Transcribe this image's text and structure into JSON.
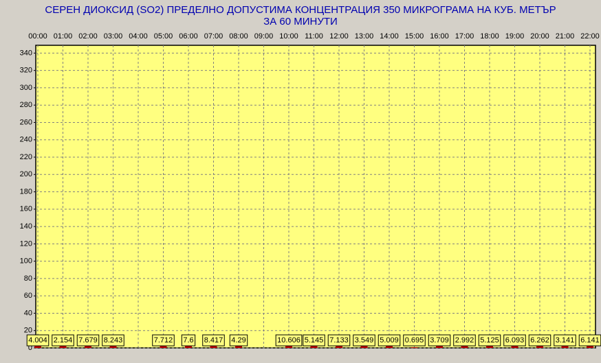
{
  "chart_data": {
    "type": "bar",
    "title": "СЕРЕН ДИОКСИД  (SO2)  ПРЕДЕЛНО ДОПУСТИМА КОНЦЕНТРАЦИЯ 350 МИКРОГРАМА  НА КУБ. МЕТЪР",
    "subtitle": "ЗА 60 МИНУТИ",
    "categories": [
      "00:00",
      "01:00",
      "02:00",
      "03:00",
      "04:00",
      "05:00",
      "06:00",
      "07:00",
      "08:00",
      "09:00",
      "10:00",
      "11:00",
      "12:00",
      "13:00",
      "14:00",
      "15:00",
      "16:00",
      "17:00",
      "18:00",
      "19:00",
      "20:00",
      "21:00",
      "22:00"
    ],
    "values": [
      4.004,
      2.154,
      7.679,
      8.243,
      null,
      7.712,
      7.6,
      8.417,
      4.29,
      null,
      10.606,
      5.145,
      7.133,
      3.549,
      5.009,
      0.695,
      3.709,
      2.992,
      5.125,
      6.093,
      6.262,
      3.141,
      6.141
    ],
    "color": "#c00000",
    "ylim": [
      0,
      349
    ],
    "yticks": [
      0,
      20,
      40,
      60,
      80,
      100,
      120,
      140,
      160,
      180,
      200,
      220,
      240,
      260,
      280,
      300,
      320,
      340
    ],
    "grid": true
  }
}
